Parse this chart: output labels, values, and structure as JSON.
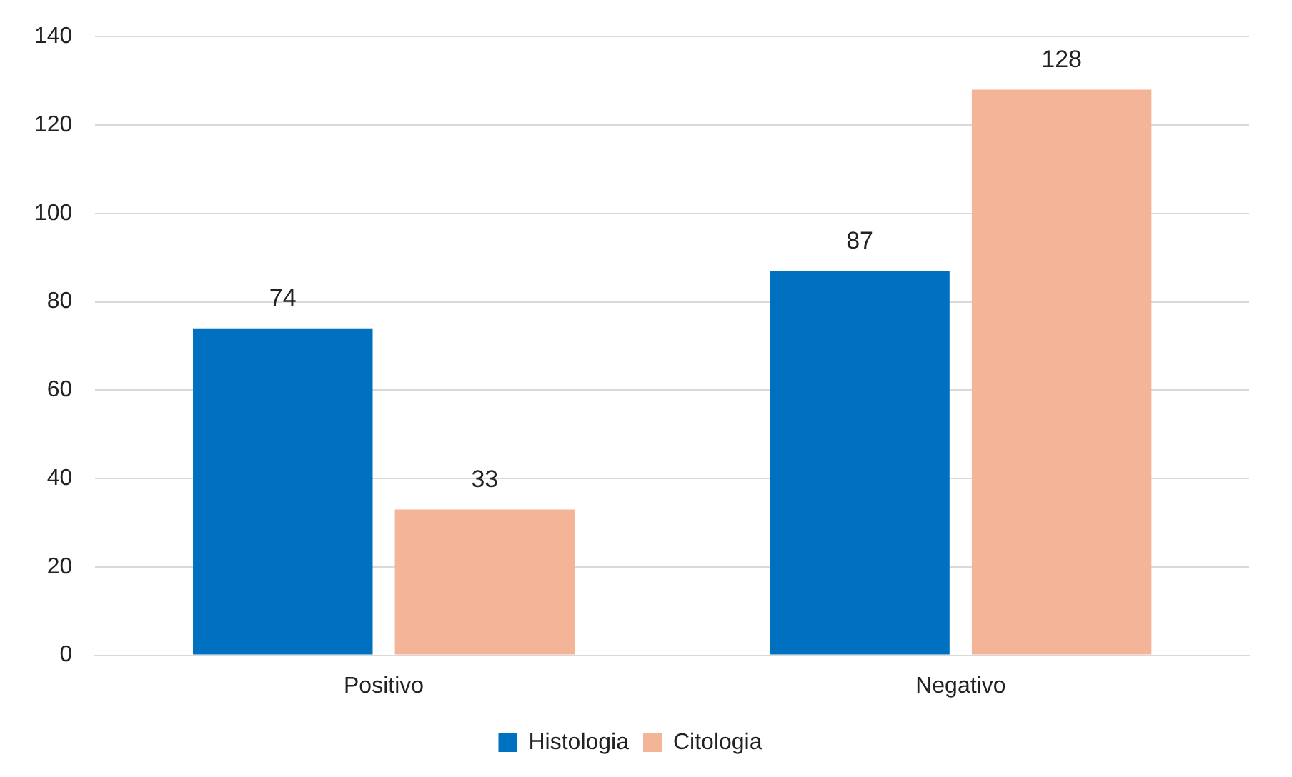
{
  "chart_data": {
    "type": "bar",
    "categories": [
      "Positivo",
      "Negativo"
    ],
    "series": [
      {
        "name": "Histologia",
        "color": "#0070c0",
        "values": [
          74,
          87
        ]
      },
      {
        "name": "Citologia",
        "color": "#f4b497",
        "values": [
          33,
          128
        ]
      }
    ],
    "ylim": [
      0,
      140
    ],
    "yticks": [
      0,
      20,
      40,
      60,
      80,
      100,
      120,
      140
    ],
    "grid": "y",
    "legend": "bottom",
    "data_labels": true
  }
}
